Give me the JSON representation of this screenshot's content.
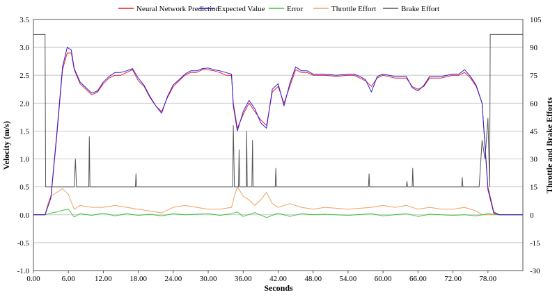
{
  "chart_data": {
    "type": "line",
    "title": "",
    "xlabel": "Seconds",
    "ylabel": "Velocity (m/s)",
    "y2label": "Throttle and Brake Efforts",
    "xlim": [
      0,
      84
    ],
    "ylim": [
      -1.0,
      3.5
    ],
    "y2lim": [
      -30,
      105
    ],
    "x_ticks": [
      "0.00",
      "6.00",
      "12.00",
      "18.00",
      "24.00",
      "30.00",
      "36.00",
      "42.00",
      "48.00",
      "54.00",
      "60.00",
      "66.00",
      "72.00",
      "78.00"
    ],
    "y_ticks": [
      "-1.0",
      "-0.5",
      "0.0",
      "0.5",
      "1.0",
      "1.5",
      "2.0",
      "2.5",
      "3.0",
      "3.5"
    ],
    "y2_ticks": [
      "-30",
      "-15",
      "0",
      "15",
      "30",
      "45",
      "60",
      "75",
      "90",
      "105"
    ],
    "grid": "horizontal",
    "legend_position": "top",
    "series": [
      {
        "name": "Neural Network Prediction",
        "axis": "left",
        "color": "#e8192c",
        "x": [
          0,
          2,
          3,
          4,
          5,
          5.8,
          6.5,
          7,
          8,
          9,
          10,
          11,
          12,
          13,
          14,
          15,
          16,
          17,
          18,
          19,
          20,
          21,
          22,
          23,
          24,
          25,
          26,
          27,
          28,
          29,
          30,
          31,
          32,
          33,
          34,
          34.3,
          35,
          36,
          37,
          38,
          39,
          40,
          41,
          42,
          43,
          44,
          45,
          46,
          47,
          48,
          50,
          52,
          54,
          55,
          56,
          57,
          58,
          59,
          60,
          62,
          64,
          65,
          66,
          67,
          68,
          70,
          72,
          73,
          74,
          75,
          76,
          77,
          78,
          79,
          80,
          82,
          84
        ],
        "y": [
          0,
          0,
          0.3,
          1.4,
          2.6,
          2.9,
          2.9,
          2.6,
          2.35,
          2.25,
          2.15,
          2.2,
          2.35,
          2.45,
          2.5,
          2.5,
          2.55,
          2.6,
          2.4,
          2.3,
          2.1,
          1.95,
          1.85,
          2.1,
          2.3,
          2.4,
          2.5,
          2.55,
          2.55,
          2.6,
          2.6,
          2.58,
          2.55,
          2.5,
          2.5,
          2.0,
          1.55,
          1.8,
          2.0,
          1.85,
          1.7,
          1.6,
          2.2,
          2.3,
          2.0,
          2.3,
          2.6,
          2.55,
          2.55,
          2.5,
          2.5,
          2.48,
          2.5,
          2.5,
          2.45,
          2.4,
          2.3,
          2.45,
          2.5,
          2.45,
          2.45,
          2.3,
          2.25,
          2.3,
          2.45,
          2.45,
          2.5,
          2.5,
          2.55,
          2.45,
          2.3,
          2.0,
          0.5,
          0.05,
          0,
          0,
          0
        ]
      },
      {
        "name": "Expected Value",
        "axis": "left",
        "color": "#2a1fd6",
        "x": [
          0,
          2,
          3,
          4,
          5,
          5.8,
          6.5,
          7,
          8,
          9,
          10,
          11,
          12,
          13,
          14,
          15,
          16,
          17,
          18,
          19,
          20,
          21,
          22,
          23,
          24,
          25,
          26,
          27,
          28,
          29,
          30,
          31,
          32,
          33,
          34,
          34.3,
          35,
          36,
          37,
          38,
          39,
          40,
          41,
          42,
          43,
          44,
          45,
          46,
          47,
          48,
          50,
          52,
          54,
          55,
          56,
          57,
          58,
          59,
          60,
          62,
          64,
          65,
          66,
          67,
          68,
          70,
          72,
          73,
          74,
          75,
          76,
          77,
          78,
          79,
          80,
          82,
          84
        ],
        "y": [
          0,
          0,
          0.32,
          1.45,
          2.65,
          3.0,
          2.95,
          2.62,
          2.38,
          2.28,
          2.18,
          2.22,
          2.38,
          2.48,
          2.55,
          2.55,
          2.58,
          2.62,
          2.45,
          2.32,
          2.12,
          1.95,
          1.82,
          2.12,
          2.33,
          2.42,
          2.52,
          2.58,
          2.58,
          2.62,
          2.63,
          2.6,
          2.58,
          2.55,
          2.52,
          1.95,
          1.5,
          1.85,
          2.05,
          1.9,
          1.65,
          1.55,
          2.25,
          2.35,
          1.95,
          2.35,
          2.65,
          2.58,
          2.58,
          2.52,
          2.52,
          2.5,
          2.52,
          2.52,
          2.48,
          2.42,
          2.2,
          2.48,
          2.52,
          2.48,
          2.48,
          2.28,
          2.22,
          2.32,
          2.48,
          2.48,
          2.52,
          2.52,
          2.6,
          2.48,
          2.32,
          2.0,
          0.45,
          0.03,
          0,
          0,
          0
        ]
      },
      {
        "name": "Error",
        "axis": "left",
        "color": "#3cc43c",
        "x": [
          0,
          2,
          3,
          4,
          5,
          6,
          7,
          8,
          10,
          12,
          14,
          16,
          18,
          20,
          22,
          24,
          26,
          28,
          30,
          32,
          34,
          35,
          36,
          38,
          40,
          42,
          44,
          46,
          48,
          50,
          54,
          58,
          60,
          62,
          64,
          66,
          68,
          70,
          72,
          74,
          76,
          78,
          80,
          82,
          84
        ],
        "y": [
          0,
          0,
          0.03,
          0.05,
          0.08,
          0.1,
          -0.04,
          0.02,
          -0.01,
          0.03,
          -0.02,
          0.02,
          -0.01,
          0.01,
          -0.02,
          0.02,
          0.0,
          0.01,
          0.02,
          -0.01,
          0.02,
          0.05,
          -0.03,
          0.04,
          -0.05,
          0.03,
          -0.03,
          0.02,
          0.0,
          0.01,
          -0.01,
          0.02,
          -0.02,
          0.0,
          0.02,
          -0.03,
          0.01,
          0.0,
          -0.01,
          0.0,
          -0.02,
          0.02,
          0,
          0,
          0
        ]
      },
      {
        "name": "Throttle Effort",
        "axis": "right",
        "color": "#f0a060",
        "x": [
          0,
          2,
          2.5,
          3,
          4,
          5,
          6,
          7,
          8,
          10,
          12,
          14,
          16,
          18,
          20,
          22,
          24,
          26,
          28,
          30,
          32,
          34,
          34.5,
          35,
          36,
          37,
          38,
          39,
          40,
          41,
          42,
          44,
          46,
          48,
          50,
          54,
          58,
          60,
          62,
          64,
          66,
          68,
          70,
          72,
          74,
          76,
          77,
          78,
          79,
          80,
          82,
          84
        ],
        "y": [
          0,
          0,
          6,
          10,
          12,
          14,
          11,
          3,
          5,
          4,
          4,
          5,
          4,
          3,
          2,
          1,
          4,
          5,
          4,
          3,
          3,
          4,
          10,
          15,
          10,
          8,
          5,
          8,
          12,
          6,
          4,
          6,
          4,
          3,
          4,
          3,
          4,
          5,
          4,
          5,
          3,
          4,
          3,
          3,
          4,
          2,
          0,
          0,
          0,
          0,
          0,
          0
        ]
      },
      {
        "name": "Brake Effort",
        "axis": "right",
        "color": "#555555",
        "x": [
          0,
          2,
          2.1,
          7,
          7.2,
          7.4,
          9.5,
          9.6,
          9.7,
          17.5,
          17.6,
          17.7,
          34.2,
          34.3,
          34.5,
          35.2,
          35.3,
          35.4,
          36.5,
          36.6,
          36.7,
          37.5,
          37.6,
          37.7,
          41.5,
          41.6,
          41.7,
          57.5,
          57.6,
          57.7,
          64,
          64.1,
          64.2,
          65,
          65.1,
          65.2,
          73.5,
          73.6,
          73.7,
          76.5,
          77,
          77.5,
          78,
          78.3,
          78.4,
          78.6,
          84
        ],
        "y": [
          97,
          97,
          15,
          15,
          30,
          15,
          15,
          42,
          15,
          15,
          22,
          15,
          15,
          48,
          15,
          15,
          35,
          15,
          15,
          45,
          15,
          15,
          40,
          15,
          15,
          25,
          15,
          15,
          22,
          15,
          15,
          18,
          15,
          15,
          25,
          15,
          15,
          20,
          15,
          15,
          40,
          30,
          52,
          15,
          97,
          97,
          97
        ]
      }
    ]
  }
}
